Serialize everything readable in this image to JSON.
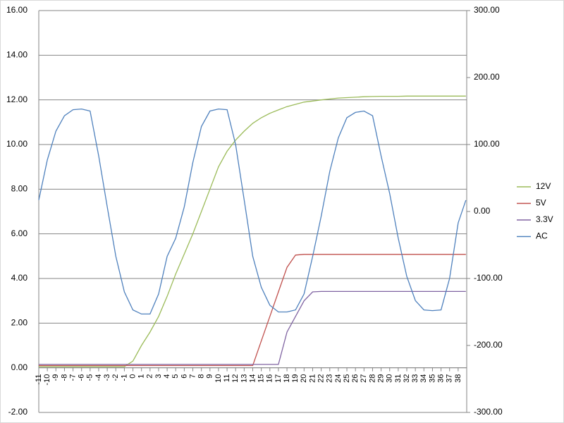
{
  "chart_data": {
    "type": "line",
    "x": [
      -11,
      -10,
      -9,
      -8,
      -7,
      -6,
      -5,
      -4,
      -3,
      -2,
      -1,
      0,
      1,
      2,
      3,
      4,
      5,
      6,
      7,
      8,
      9,
      10,
      11,
      12,
      13,
      14,
      15,
      16,
      17,
      18,
      19,
      20,
      21,
      22,
      23,
      24,
      25,
      26,
      27,
      28,
      29,
      30,
      31,
      32,
      33,
      34,
      35,
      36,
      37,
      38,
      38.9
    ],
    "xlim": [
      -11,
      39
    ],
    "xticks": [
      -11,
      -10,
      -9,
      -8,
      -7,
      -6,
      -5,
      -4,
      -3,
      -2,
      -1,
      0,
      1,
      2,
      3,
      4,
      5,
      6,
      7,
      8,
      9,
      10,
      11,
      12,
      13,
      14,
      15,
      16,
      17,
      18,
      19,
      20,
      21,
      22,
      23,
      24,
      25,
      26,
      27,
      28,
      29,
      30,
      31,
      32,
      33,
      34,
      35,
      36,
      37,
      38
    ],
    "ylim": [
      -2,
      16
    ],
    "yticks": [
      {
        "value": -2,
        "label": "-2.00"
      },
      {
        "value": 0,
        "label": "0.00"
      },
      {
        "value": 2,
        "label": "2.00"
      },
      {
        "value": 4,
        "label": "4.00"
      },
      {
        "value": 6,
        "label": "6.00"
      },
      {
        "value": 8,
        "label": "8.00"
      },
      {
        "value": 10,
        "label": "10.00"
      },
      {
        "value": 12,
        "label": "12.00"
      },
      {
        "value": 14,
        "label": "14.00"
      },
      {
        "value": 16,
        "label": "16.00"
      }
    ],
    "y2lim": [
      -300,
      300
    ],
    "y2ticks": [
      {
        "value": -300,
        "label": "-300.00"
      },
      {
        "value": -200,
        "label": "-200.00"
      },
      {
        "value": -100,
        "label": "-100.00"
      },
      {
        "value": 0,
        "label": "0.00"
      },
      {
        "value": 100,
        "label": "100.00"
      },
      {
        "value": 200,
        "label": "200.00"
      },
      {
        "value": 300,
        "label": "300.00"
      }
    ],
    "grid": true,
    "legend": "right",
    "series": [
      {
        "name": "12V",
        "color": "#9bbb59",
        "values": [
          0.05,
          0.05,
          0.05,
          0.05,
          0.05,
          0.05,
          0.05,
          0.05,
          0.05,
          0.05,
          0.05,
          0.3,
          1.0,
          1.6,
          2.3,
          3.2,
          4.2,
          5.1,
          6.0,
          7.0,
          8.0,
          9.0,
          9.7,
          10.2,
          10.6,
          10.95,
          11.2,
          11.4,
          11.55,
          11.7,
          11.8,
          11.9,
          11.95,
          12.0,
          12.04,
          12.08,
          12.1,
          12.12,
          12.14,
          12.15,
          12.16,
          12.16,
          12.16,
          12.17,
          12.17,
          12.17,
          12.17,
          12.17,
          12.17,
          12.17,
          12.17
        ]
      },
      {
        "name": "5V",
        "color": "#c0504d",
        "values": [
          0.1,
          0.1,
          0.1,
          0.1,
          0.1,
          0.1,
          0.1,
          0.1,
          0.1,
          0.1,
          0.1,
          0.1,
          0.1,
          0.1,
          0.1,
          0.1,
          0.1,
          0.1,
          0.1,
          0.1,
          0.1,
          0.1,
          0.1,
          0.1,
          0.1,
          0.1,
          1.2,
          2.3,
          3.4,
          4.5,
          5.05,
          5.08,
          5.08,
          5.08,
          5.08,
          5.08,
          5.08,
          5.08,
          5.08,
          5.08,
          5.08,
          5.08,
          5.08,
          5.08,
          5.08,
          5.08,
          5.08,
          5.08,
          5.08,
          5.08,
          5.08
        ]
      },
      {
        "name": "3.3V",
        "color": "#8064a2",
        "values": [
          0.15,
          0.15,
          0.15,
          0.15,
          0.15,
          0.15,
          0.15,
          0.15,
          0.15,
          0.15,
          0.15,
          0.15,
          0.15,
          0.15,
          0.15,
          0.15,
          0.15,
          0.15,
          0.15,
          0.15,
          0.15,
          0.15,
          0.15,
          0.15,
          0.15,
          0.15,
          0.15,
          0.15,
          0.15,
          1.6,
          2.3,
          3.0,
          3.4,
          3.42,
          3.42,
          3.42,
          3.42,
          3.42,
          3.42,
          3.42,
          3.42,
          3.42,
          3.42,
          3.42,
          3.42,
          3.42,
          3.42,
          3.42,
          3.42,
          3.42,
          3.42
        ]
      },
      {
        "name": "AC",
        "color": "#4f81bd",
        "axis": "y2",
        "values": [
          17,
          77,
          120,
          143,
          152,
          153,
          150,
          83,
          7,
          -67,
          -120,
          -147,
          -153,
          -153,
          -123,
          -67,
          -40,
          7,
          73,
          127,
          150,
          153,
          152,
          100,
          17,
          -67,
          -113,
          -140,
          -150,
          -150,
          -147,
          -123,
          -67,
          -7,
          60,
          110,
          140,
          148,
          150,
          143,
          83,
          27,
          -40,
          -97,
          -133,
          -147,
          -148,
          -147,
          -100,
          -17,
          17
        ]
      }
    ]
  }
}
